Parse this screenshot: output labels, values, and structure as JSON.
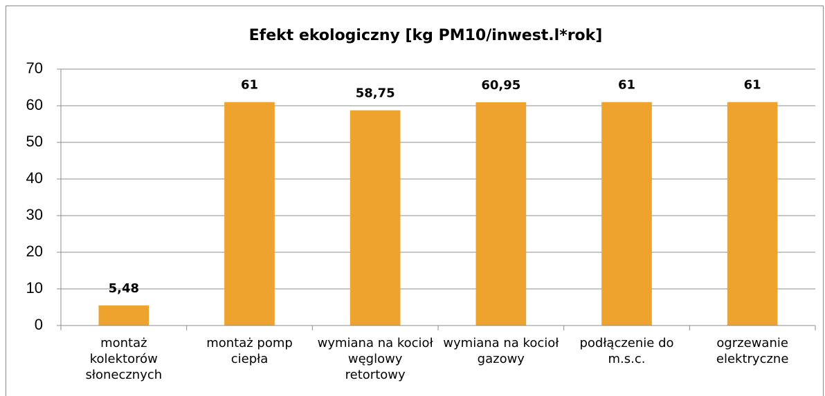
{
  "chart_data": {
    "type": "bar",
    "title": "Efekt ekologiczny [kg PM10/inwest.l*rok]",
    "categories": [
      "montaż kolektorów słonecznych",
      "montaż pomp ciepła",
      "wymiana na kocioł węglowy retortowy",
      "wymiana na kocioł gazowy",
      "podłączenie do m.s.c.",
      "ogrzewanie elektryczne"
    ],
    "values": [
      5.48,
      61,
      58.75,
      60.95,
      61,
      61
    ],
    "value_labels": [
      "5,48",
      "61",
      "58,75",
      "60,95",
      "61",
      "61"
    ],
    "color": "#eea32f",
    "ylim": [
      0,
      70
    ],
    "yticks": [
      0,
      10,
      20,
      30,
      40,
      50,
      60,
      70
    ],
    "grid": true
  }
}
